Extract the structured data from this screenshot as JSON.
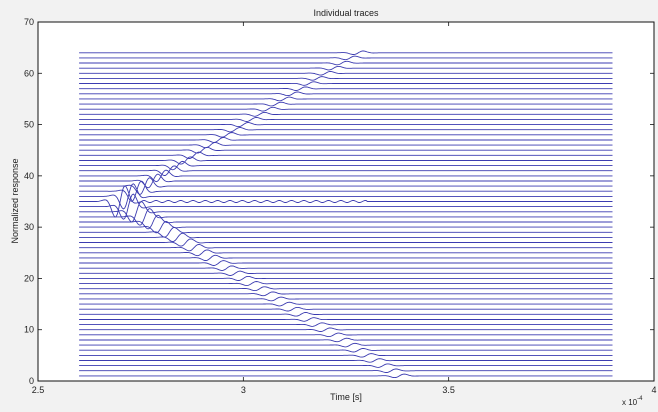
{
  "chart_data": {
    "type": "line",
    "title": "Individual traces",
    "xlabel": "Time [s]",
    "ylabel": "Normalized response",
    "x_exponent_label": "x 10",
    "x_exponent_power": "-4",
    "xlim": [
      2.5,
      4.0
    ],
    "ylim": [
      0,
      70
    ],
    "x_ticks": [
      "2.5",
      "3",
      "3.5",
      "4"
    ],
    "x_tick_values": [
      2.5,
      3.0,
      3.5,
      4.0
    ],
    "y_ticks": [
      "0",
      "10",
      "20",
      "30",
      "40",
      "50",
      "60",
      "70"
    ],
    "y_tick_values": [
      0,
      10,
      20,
      30,
      40,
      50,
      60,
      70
    ],
    "grid": false,
    "series_color": "#3b3bb0",
    "trace_count": 64,
    "trace_spacing": 1,
    "trace_start_time": 2.6,
    "trace_end_time": 3.9,
    "source_trace": 35,
    "source_time": 2.7,
    "wave_speed_traces_per_unit": 50,
    "wave_amplitude_source": 4.0,
    "wave_amplitude_far": 0.45,
    "wave_period": 0.06,
    "reflection": {
      "trace": 35,
      "start_time": 2.75,
      "end_time": 3.3,
      "amplitude": 0.2
    }
  }
}
